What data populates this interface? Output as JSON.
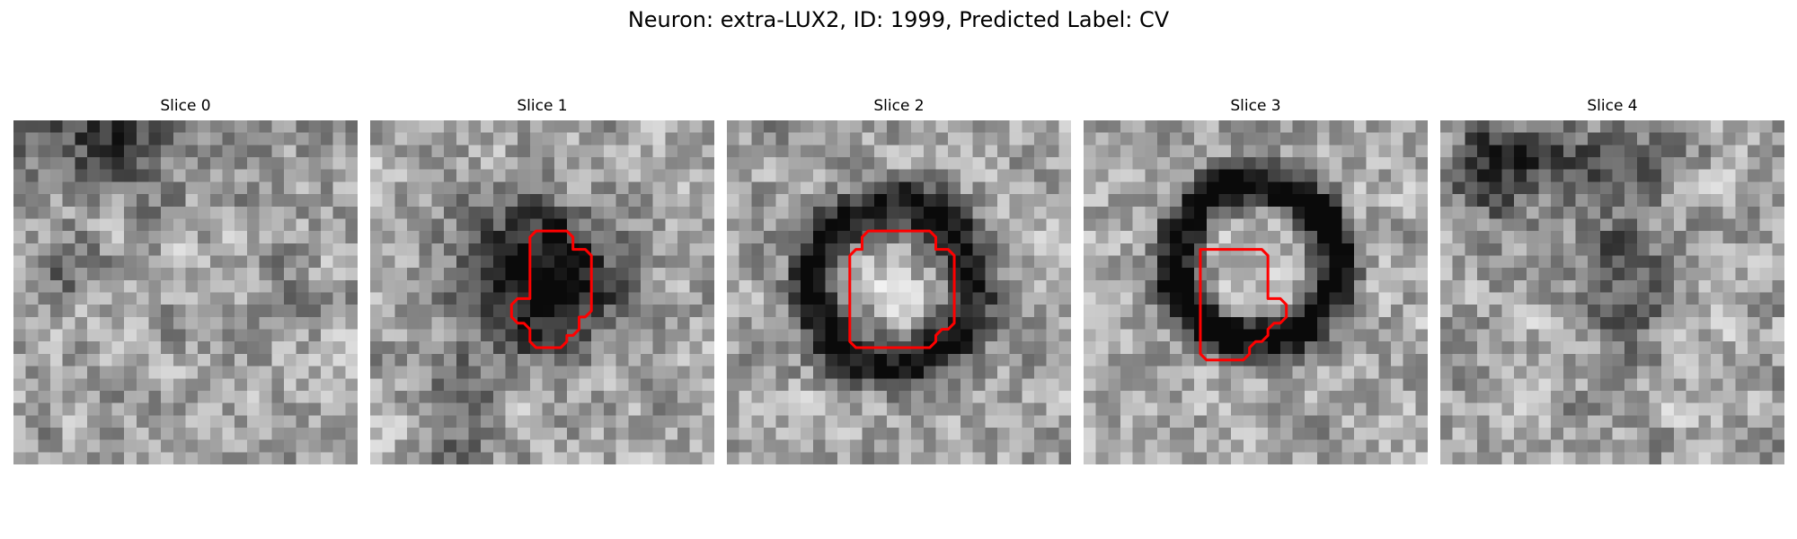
{
  "figure": {
    "title": "Neuron: extra-LUX2, ID: 1999, Predicted Label: CV"
  },
  "outline_color": "#ff0000",
  "panels": [
    {
      "title": "Slice 0",
      "has_outline": false
    },
    {
      "title": "Slice 1",
      "has_outline": true
    },
    {
      "title": "Slice 2",
      "has_outline": true
    },
    {
      "title": "Slice 3",
      "has_outline": true
    },
    {
      "title": "Slice 4",
      "has_outline": false
    }
  ]
}
